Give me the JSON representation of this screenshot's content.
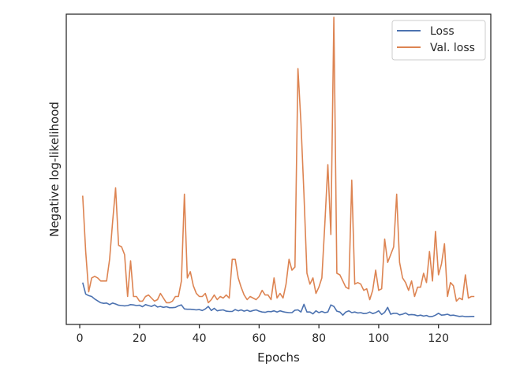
{
  "chart_data": {
    "type": "line",
    "title": "",
    "xlabel": "Epochs",
    "ylabel": "Negative log-likelihood",
    "xlim": [
      -4.5,
      137.5
    ],
    "ylim": [
      0.0,
      1.0
    ],
    "xticks": [
      0,
      20,
      40,
      60,
      80,
      100,
      120
    ],
    "yticks": [],
    "grid": false,
    "legend_position": "upper right",
    "series": [
      {
        "name": "Loss",
        "color": "#4c72b0",
        "x": [
          1,
          2,
          3,
          4,
          5,
          6,
          7,
          8,
          9,
          10,
          11,
          12,
          13,
          14,
          15,
          16,
          17,
          18,
          19,
          20,
          21,
          22,
          23,
          24,
          25,
          26,
          27,
          28,
          29,
          30,
          31,
          32,
          33,
          34,
          35,
          36,
          37,
          38,
          39,
          40,
          41,
          42,
          43,
          44,
          45,
          46,
          47,
          48,
          49,
          50,
          51,
          52,
          53,
          54,
          55,
          56,
          57,
          58,
          59,
          60,
          61,
          62,
          63,
          64,
          65,
          66,
          67,
          68,
          69,
          70,
          71,
          72,
          73,
          74,
          75,
          76,
          77,
          78,
          79,
          80,
          81,
          82,
          83,
          84,
          85,
          86,
          87,
          88,
          89,
          90,
          91,
          92,
          93,
          94,
          95,
          96,
          97,
          98,
          99,
          100,
          101,
          102,
          103,
          104,
          105,
          106,
          107,
          108,
          109,
          110,
          111,
          112,
          113,
          114,
          115,
          116,
          117,
          118,
          119,
          120,
          121,
          122,
          123,
          124,
          125,
          126,
          127,
          128,
          129,
          130,
          131,
          132
        ],
        "y": [
          0.135,
          0.098,
          0.093,
          0.09,
          0.082,
          0.076,
          0.07,
          0.068,
          0.069,
          0.064,
          0.069,
          0.066,
          0.062,
          0.061,
          0.06,
          0.061,
          0.064,
          0.063,
          0.061,
          0.062,
          0.057,
          0.064,
          0.061,
          0.058,
          0.063,
          0.056,
          0.058,
          0.055,
          0.057,
          0.054,
          0.054,
          0.055,
          0.06,
          0.063,
          0.05,
          0.049,
          0.049,
          0.048,
          0.047,
          0.048,
          0.045,
          0.05,
          0.058,
          0.045,
          0.052,
          0.044,
          0.046,
          0.047,
          0.043,
          0.042,
          0.042,
          0.048,
          0.044,
          0.047,
          0.043,
          0.046,
          0.042,
          0.045,
          0.047,
          0.043,
          0.04,
          0.039,
          0.042,
          0.041,
          0.044,
          0.04,
          0.044,
          0.041,
          0.039,
          0.038,
          0.038,
          0.046,
          0.047,
          0.04,
          0.065,
          0.04,
          0.04,
          0.034,
          0.044,
          0.038,
          0.042,
          0.038,
          0.04,
          0.063,
          0.058,
          0.043,
          0.04,
          0.03,
          0.04,
          0.044,
          0.038,
          0.04,
          0.037,
          0.038,
          0.035,
          0.036,
          0.04,
          0.035,
          0.038,
          0.044,
          0.032,
          0.039,
          0.055,
          0.033,
          0.036,
          0.036,
          0.031,
          0.033,
          0.037,
          0.031,
          0.032,
          0.031,
          0.028,
          0.03,
          0.027,
          0.029,
          0.025,
          0.026,
          0.03,
          0.036,
          0.03,
          0.031,
          0.033,
          0.029,
          0.03,
          0.028,
          0.026,
          0.027,
          0.025,
          0.025,
          0.026,
          0.026
        ]
      },
      {
        "name": "Val. loss",
        "color": "#dd8452",
        "x": [
          1,
          2,
          3,
          4,
          5,
          6,
          7,
          8,
          9,
          10,
          11,
          12,
          13,
          14,
          15,
          16,
          17,
          18,
          19,
          20,
          21,
          22,
          23,
          24,
          25,
          26,
          27,
          28,
          29,
          30,
          31,
          32,
          33,
          34,
          35,
          36,
          37,
          38,
          39,
          40,
          41,
          42,
          43,
          44,
          45,
          46,
          47,
          48,
          49,
          50,
          51,
          52,
          53,
          54,
          55,
          56,
          57,
          58,
          59,
          60,
          61,
          62,
          63,
          64,
          65,
          66,
          67,
          68,
          69,
          70,
          71,
          72,
          73,
          74,
          75,
          76,
          77,
          78,
          79,
          80,
          81,
          82,
          83,
          84,
          85,
          86,
          87,
          88,
          89,
          90,
          91,
          92,
          93,
          94,
          95,
          96,
          97,
          98,
          99,
          100,
          101,
          102,
          103,
          104,
          105,
          106,
          107,
          108,
          109,
          110,
          111,
          112,
          113,
          114,
          115,
          116,
          117,
          118,
          119,
          120,
          121,
          122,
          123,
          124,
          125,
          126,
          127,
          128,
          129,
          130,
          131,
          132
        ],
        "y": [
          0.415,
          0.235,
          0.105,
          0.15,
          0.155,
          0.15,
          0.14,
          0.14,
          0.14,
          0.21,
          0.33,
          0.44,
          0.255,
          0.25,
          0.225,
          0.09,
          0.205,
          0.09,
          0.09,
          0.075,
          0.075,
          0.09,
          0.095,
          0.085,
          0.075,
          0.08,
          0.1,
          0.085,
          0.07,
          0.07,
          0.075,
          0.09,
          0.09,
          0.14,
          0.42,
          0.15,
          0.17,
          0.125,
          0.1,
          0.09,
          0.09,
          0.1,
          0.07,
          0.08,
          0.095,
          0.08,
          0.09,
          0.085,
          0.095,
          0.085,
          0.21,
          0.21,
          0.15,
          0.12,
          0.095,
          0.08,
          0.09,
          0.085,
          0.08,
          0.09,
          0.11,
          0.095,
          0.095,
          0.08,
          0.15,
          0.085,
          0.1,
          0.085,
          0.13,
          0.21,
          0.175,
          0.185,
          0.825,
          0.65,
          0.42,
          0.165,
          0.13,
          0.15,
          0.1,
          0.12,
          0.15,
          0.325,
          0.515,
          0.29,
          0.99,
          0.165,
          0.16,
          0.14,
          0.12,
          0.115,
          0.465,
          0.13,
          0.135,
          0.13,
          0.11,
          0.115,
          0.08,
          0.11,
          0.175,
          0.11,
          0.115,
          0.275,
          0.2,
          0.225,
          0.25,
          0.42,
          0.2,
          0.15,
          0.135,
          0.11,
          0.14,
          0.09,
          0.12,
          0.12,
          0.165,
          0.135,
          0.235,
          0.14,
          0.3,
          0.16,
          0.195,
          0.26,
          0.09,
          0.135,
          0.125,
          0.075,
          0.085,
          0.08,
          0.16,
          0.085,
          0.09,
          0.09
        ]
      }
    ]
  }
}
